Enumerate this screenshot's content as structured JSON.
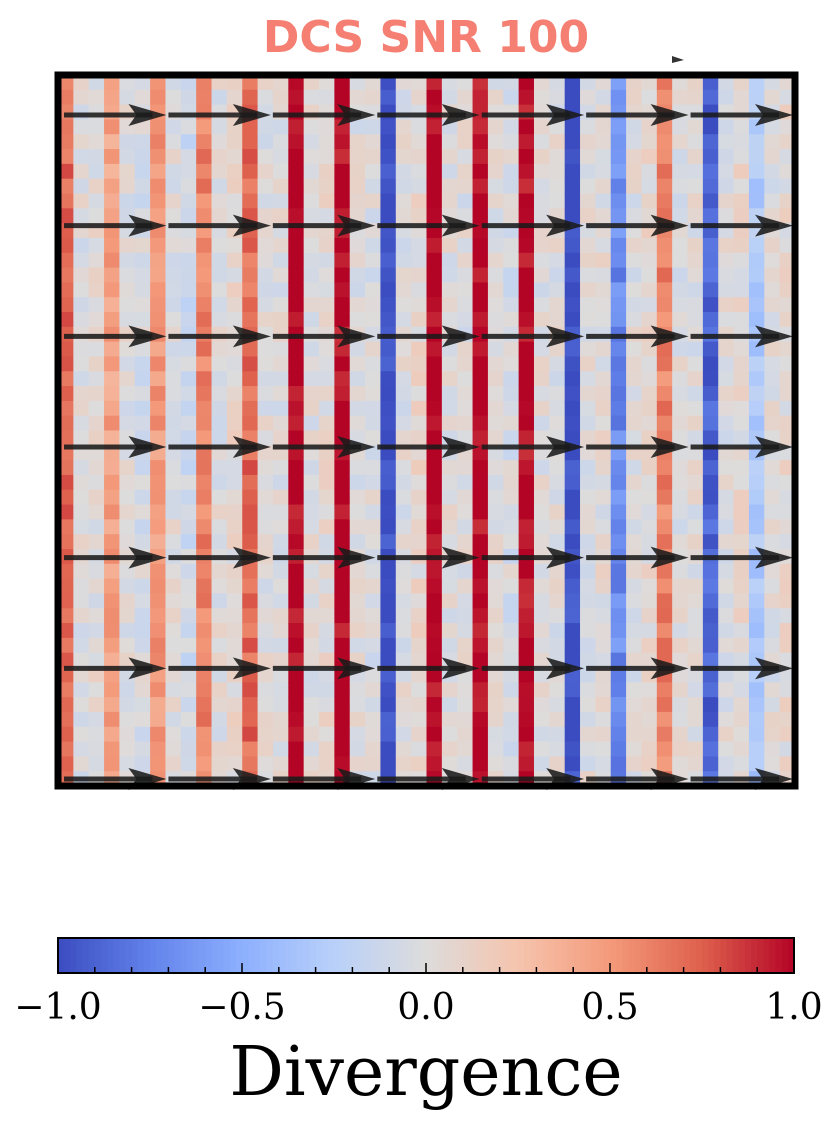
{
  "chart_data": {
    "type": "heatmap",
    "title": "DCS SNR 100",
    "title_color": "#f47f72",
    "field_style": "vertical stripes with fine speckle noise, overlaid with rightward quiver arrows",
    "columns": 48,
    "rows": 48,
    "column_divergence": [
      0.7,
      0.0,
      0.02,
      0.45,
      0.0,
      -0.05,
      0.5,
      0.0,
      -0.1,
      0.6,
      0.0,
      0.05,
      0.7,
      0.0,
      0.0,
      1.0,
      0.0,
      0.03,
      1.0,
      0.0,
      -0.02,
      -1.0,
      0.0,
      0.05,
      1.0,
      0.0,
      0.0,
      1.0,
      0.0,
      -0.05,
      1.0,
      0.0,
      0.0,
      -1.0,
      0.0,
      0.02,
      -0.7,
      0.0,
      0.05,
      0.6,
      0.0,
      0.0,
      -0.9,
      0.0,
      0.05,
      -0.3,
      0.0,
      0.05
    ],
    "noise_amplitude": 0.12,
    "arrow_rows": 7,
    "arrow_columns": 7,
    "arrow_direction": "right",
    "colorbar": {
      "cmap": "coolwarm",
      "vmin": -1.0,
      "vmax": 1.0,
      "ticks": [
        "−1.0",
        "−0.5",
        "0.0",
        "0.5",
        "1.0"
      ],
      "tick_values": [
        -1.0,
        -0.5,
        0.0,
        0.5,
        1.0
      ],
      "minor_ticks": 20,
      "label": "Divergence",
      "orientation": "horizontal",
      "placement": "bottom"
    },
    "xlabel": "",
    "ylabel": "",
    "grid": false
  }
}
